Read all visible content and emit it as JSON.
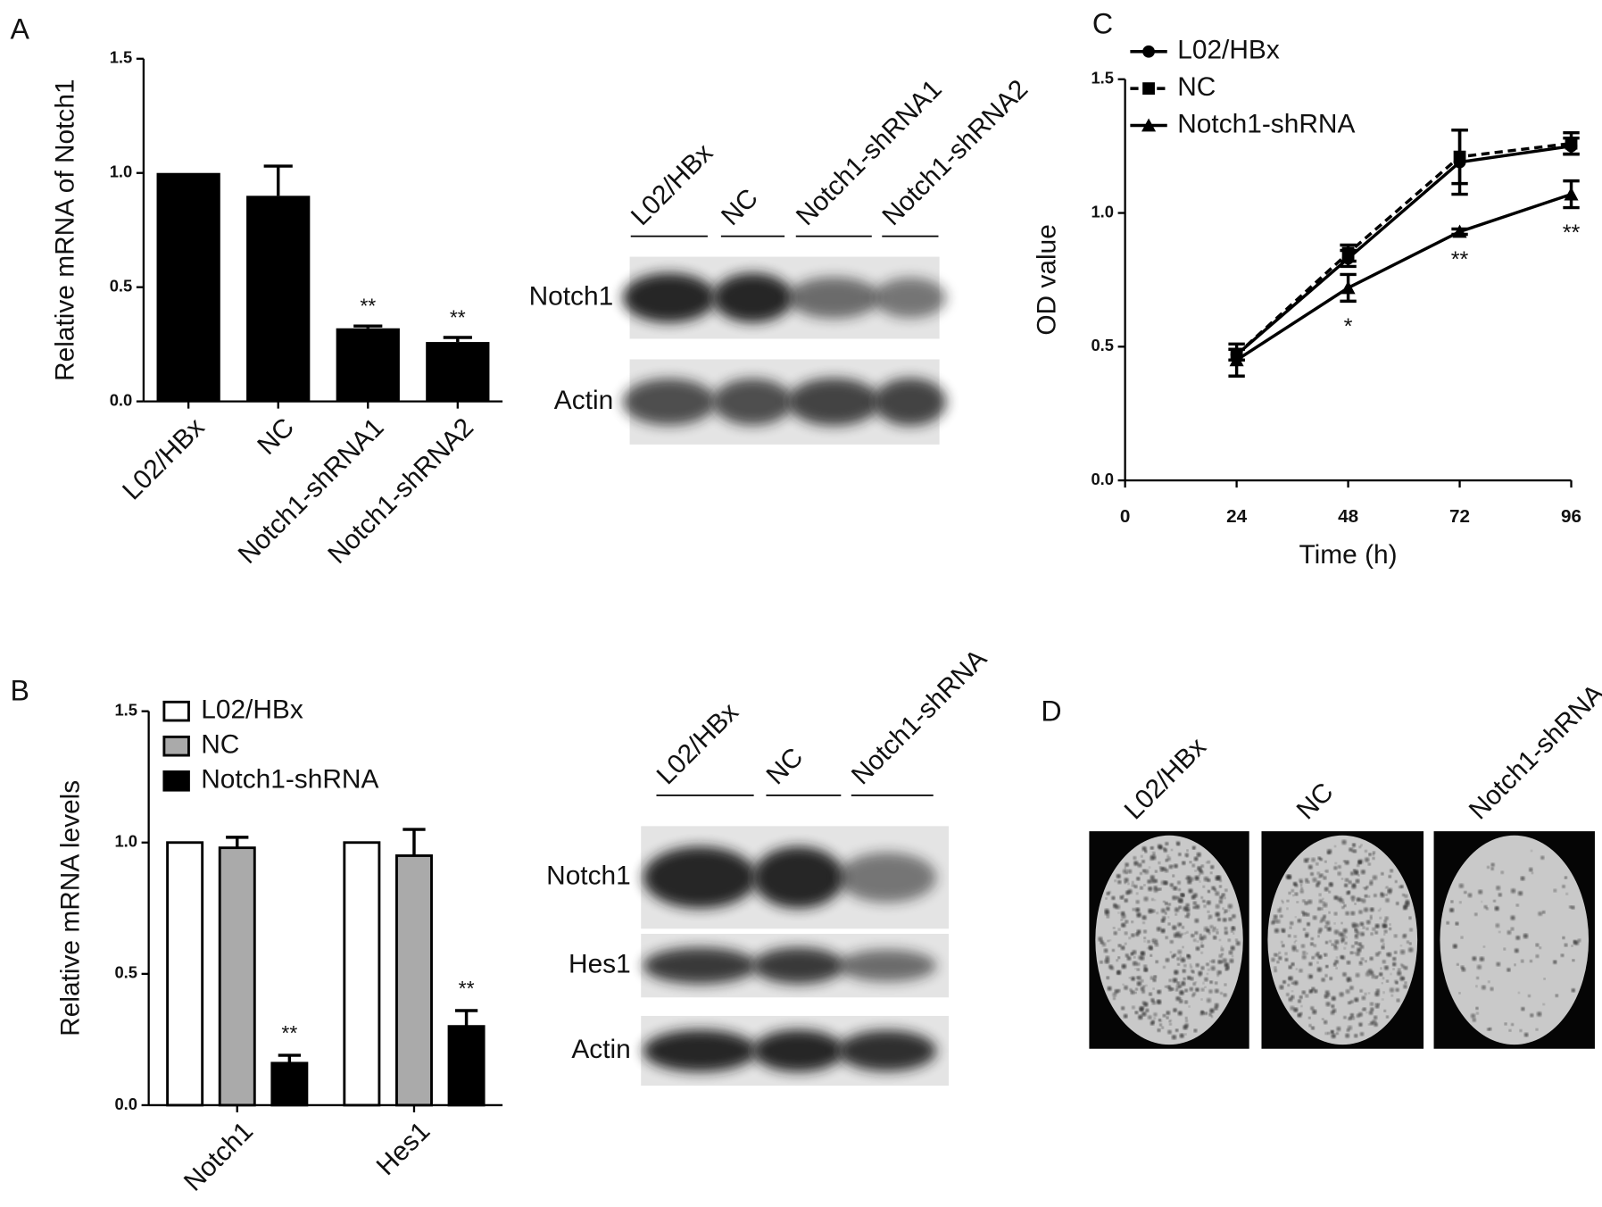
{
  "panel_labels": [
    "A",
    "B",
    "C",
    "D"
  ],
  "chart_data": [
    {
      "type": "bar",
      "ylabel": "Relative mRNA of Notch1",
      "categories": [
        "L02/HBx",
        "NC",
        "Notch1-shRNA1",
        "Notch1-shRNA2"
      ],
      "values": [
        1.0,
        0.9,
        0.32,
        0.26
      ],
      "errors": [
        0,
        0.13,
        0.01,
        0.02
      ],
      "color": "#000000",
      "ylim": [
        0,
        1.5
      ],
      "yticks": [
        {
          "value": 0,
          "label": "0.0"
        },
        0.5,
        {
          "value": 1,
          "label": "1.0"
        },
        1.5
      ],
      "significance": [
        {
          "category": "Notch1-shRNA1",
          "label": "**"
        },
        {
          "category": "Notch1-shRNA2",
          "label": "**"
        }
      ]
    },
    {
      "type": "grouped-bar",
      "ylabel": "Relative mRNA levels",
      "categories": [
        "Notch1",
        "Hes1"
      ],
      "series": [
        {
          "name": "L02/HBx",
          "color": "#ffffff",
          "values": [
            1.0,
            1.0
          ],
          "errors": [
            0,
            0
          ]
        },
        {
          "name": "NC",
          "color": "#aaaaaa",
          "values": [
            0.98,
            0.95
          ],
          "errors": [
            0.04,
            0.1
          ]
        },
        {
          "name": "Notch1-shRNA",
          "color": "#000000",
          "values": [
            0.16,
            0.3
          ],
          "errors": [
            0.03,
            0.06
          ]
        }
      ],
      "ylim": [
        0,
        1.5
      ],
      "yticks": [
        {
          "value": 0,
          "label": "0.0"
        },
        0.5,
        {
          "value": 1,
          "label": "1.0"
        },
        1.5
      ],
      "significance": [
        {
          "category": "Notch1",
          "series": "Notch1-shRNA",
          "label": "**"
        },
        {
          "category": "Hes1",
          "series": "Notch1-shRNA",
          "label": "**"
        }
      ]
    },
    {
      "type": "line",
      "xlabel": "Time (h)",
      "ylabel": "OD value",
      "x": [
        24,
        48,
        72,
        96
      ],
      "series": [
        {
          "name": "L02/HBx",
          "color": "#000000",
          "marker": "circle",
          "linestyle": "solid",
          "values": [
            0.47,
            0.83,
            1.19,
            1.25
          ],
          "errors": [
            0.02,
            0.03,
            0.12,
            0.03
          ]
        },
        {
          "name": "NC",
          "color": "#000000",
          "marker": "square",
          "linestyle": "dashed",
          "values": [
            0.47,
            0.85,
            1.21,
            1.26
          ],
          "errors": [
            0.02,
            0.03,
            0.1,
            0.04
          ]
        },
        {
          "name": "Notch1-shRNA",
          "color": "#000000",
          "marker": "triangle",
          "linestyle": "solid",
          "values": [
            0.45,
            0.72,
            0.93,
            1.07
          ],
          "errors": [
            0.06,
            0.05,
            0.01,
            0.05
          ]
        }
      ],
      "xlim": [
        0,
        96
      ],
      "xticks": [
        0,
        24,
        48,
        72,
        96
      ],
      "ylim": [
        0,
        1.5
      ],
      "yticks": [
        {
          "value": 0,
          "label": "0.0"
        },
        0.5,
        {
          "value": 1,
          "label": "1.0"
        },
        1.5
      ],
      "significance": [
        {
          "x": 48,
          "label": "*"
        },
        {
          "x": 72,
          "label": "**"
        },
        {
          "x": 96,
          "label": "**"
        }
      ]
    }
  ],
  "blots": [
    {
      "lanes": [
        "L02/HBx",
        "NC",
        "Notch1-shRNA1",
        "Notch1-shRNA2"
      ],
      "rows": [
        "Notch1",
        "Actin"
      ]
    },
    {
      "lanes": [
        "L02/HBx",
        "NC",
        "Notch1-shRNA"
      ],
      "rows": [
        "Notch1",
        "Hes1",
        "Actin"
      ]
    }
  ],
  "colony_plates": {
    "lanes": [
      "L02/HBx",
      "NC",
      "Notch1-shRNA"
    ]
  }
}
